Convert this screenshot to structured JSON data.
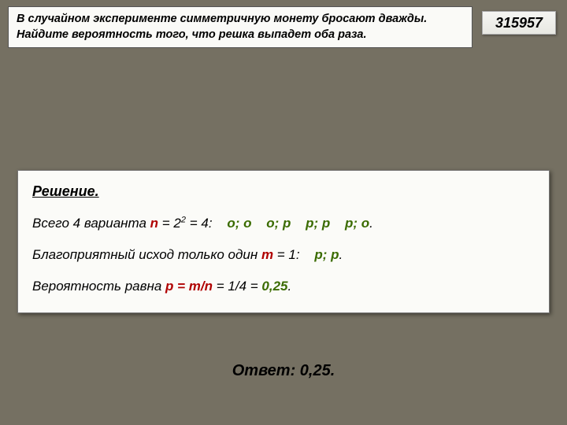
{
  "colors": {
    "background": "#757062",
    "panel_bg": "#fafaf7",
    "red": "#b00000",
    "green": "#3a6b00",
    "text": "#000000"
  },
  "problem": {
    "text_line1": "В случайном эксперименте симметричную монету бросают дважды.",
    "text_line2": "Найдите вероятность того, что решка выпадет оба раза."
  },
  "id": "315957",
  "solution": {
    "title": "Решение.",
    "line1_prefix": "Всего 4 варианта ",
    "n_label": "n",
    "line1_mid": " = 2",
    "exp": "2",
    "line1_eq": " = 4:",
    "outcomes": [
      "о; о",
      "о; р",
      "р; р",
      "р; о"
    ],
    "dot": ".",
    "line2_prefix": "Благоприятный исход только один ",
    "m_label": "m",
    "line2_mid": " = 1:",
    "fav_outcome": "р; р",
    "line3_prefix": "Вероятность равна  ",
    "p_formula": "p = m/n",
    "line3_mid": " = 1/4 = ",
    "result": "0,25",
    "line3_end": "."
  },
  "answer": {
    "label": "Ответ: ",
    "value": "0,25."
  }
}
